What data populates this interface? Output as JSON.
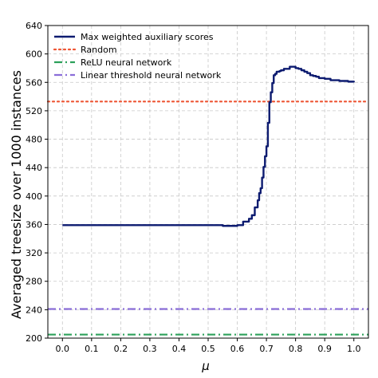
{
  "chart_data": {
    "type": "line",
    "xlabel": "μ",
    "ylabel": "Averaged treesize over 1000 instances",
    "xlim": [
      -0.05,
      1.05
    ],
    "ylim": [
      200,
      640
    ],
    "xticks": [
      0.0,
      0.1,
      0.2,
      0.3,
      0.4,
      0.5,
      0.6,
      0.7,
      0.8,
      0.9,
      1.0
    ],
    "xtick_labels": [
      "0.0",
      "0.1",
      "0.2",
      "0.3",
      "0.4",
      "0.5",
      "0.6",
      "0.7",
      "0.8",
      "0.9",
      "1.0"
    ],
    "yticks": [
      200,
      240,
      280,
      320,
      360,
      400,
      440,
      480,
      520,
      560,
      600,
      640
    ],
    "ytick_labels": [
      "200",
      "240",
      "280",
      "320",
      "360",
      "400",
      "440",
      "480",
      "520",
      "560",
      "600",
      "640"
    ],
    "grid": true,
    "legend_position": "top-left",
    "series": [
      {
        "name": "Max weighted auxiliary scores",
        "style": "solid",
        "color": "#0d1b70",
        "x": [
          0.0,
          0.05,
          0.1,
          0.15,
          0.2,
          0.25,
          0.3,
          0.35,
          0.4,
          0.45,
          0.5,
          0.55,
          0.58,
          0.6,
          0.62,
          0.64,
          0.65,
          0.66,
          0.67,
          0.675,
          0.68,
          0.685,
          0.69,
          0.695,
          0.7,
          0.705,
          0.71,
          0.715,
          0.72,
          0.725,
          0.73,
          0.735,
          0.74,
          0.745,
          0.75,
          0.76,
          0.77,
          0.78,
          0.79,
          0.8,
          0.81,
          0.82,
          0.83,
          0.84,
          0.85,
          0.86,
          0.87,
          0.88,
          0.9,
          0.92,
          0.95,
          0.98,
          1.0
        ],
        "y": [
          359,
          359,
          359,
          359,
          359,
          359,
          359,
          359,
          359,
          359,
          359,
          358,
          358,
          359,
          364,
          368,
          373,
          384,
          394,
          404,
          411,
          426,
          441,
          456,
          470,
          503,
          532,
          546,
          559,
          570,
          572,
          575,
          575,
          576,
          577,
          579,
          579,
          582,
          582,
          580,
          579,
          577,
          575,
          573,
          570,
          569,
          568,
          566,
          565,
          563,
          562,
          561,
          560
        ]
      },
      {
        "name": "Random",
        "style": "dotted",
        "color": "#ee5533",
        "x": [
          -0.05,
          1.05
        ],
        "y": [
          533,
          533
        ]
      },
      {
        "name": "ReLU neural network",
        "style": "dashdot",
        "color": "#2ca05a",
        "x": [
          -0.05,
          1.05
        ],
        "y": [
          205,
          205
        ]
      },
      {
        "name": "Linear threshold neural network",
        "style": "dashdot",
        "color": "#8a6ed8",
        "x": [
          -0.05,
          1.05
        ],
        "y": [
          241,
          241
        ]
      }
    ]
  }
}
